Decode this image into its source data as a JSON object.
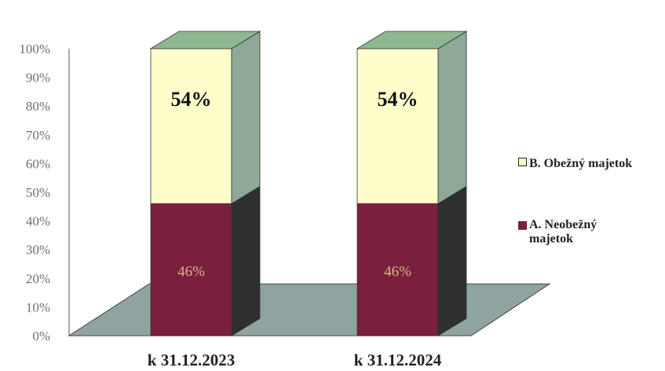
{
  "chart_data": {
    "type": "bar",
    "stacked": true,
    "three_d": true,
    "percent_axis": true,
    "title": "",
    "xlabel": "",
    "ylabel": "",
    "ylim": [
      0,
      100
    ],
    "y_ticks": [
      "0%",
      "10%",
      "20%",
      "30%",
      "40%",
      "50%",
      "60%",
      "70%",
      "80%",
      "90%",
      "100%"
    ],
    "categories": [
      "k 31.12.2023",
      "k 31.12.2024"
    ],
    "series": [
      {
        "name": "A. Neobežný majetok",
        "values": [
          46,
          46
        ],
        "labels": [
          "46%",
          "46%"
        ],
        "color": "#7a1f3d"
      },
      {
        "name": "B. Obežný majetok",
        "values": [
          54,
          54
        ],
        "labels": [
          "54%",
          "54%"
        ],
        "color": "#ffffcc"
      }
    ],
    "legend_position": "right",
    "grid": false
  },
  "legend": {
    "items": [
      {
        "label": "B. Obežný majetok",
        "color": "#ffffcc"
      },
      {
        "label": "A. Neobežný majetok",
        "color": "#7a1f3d"
      }
    ]
  }
}
